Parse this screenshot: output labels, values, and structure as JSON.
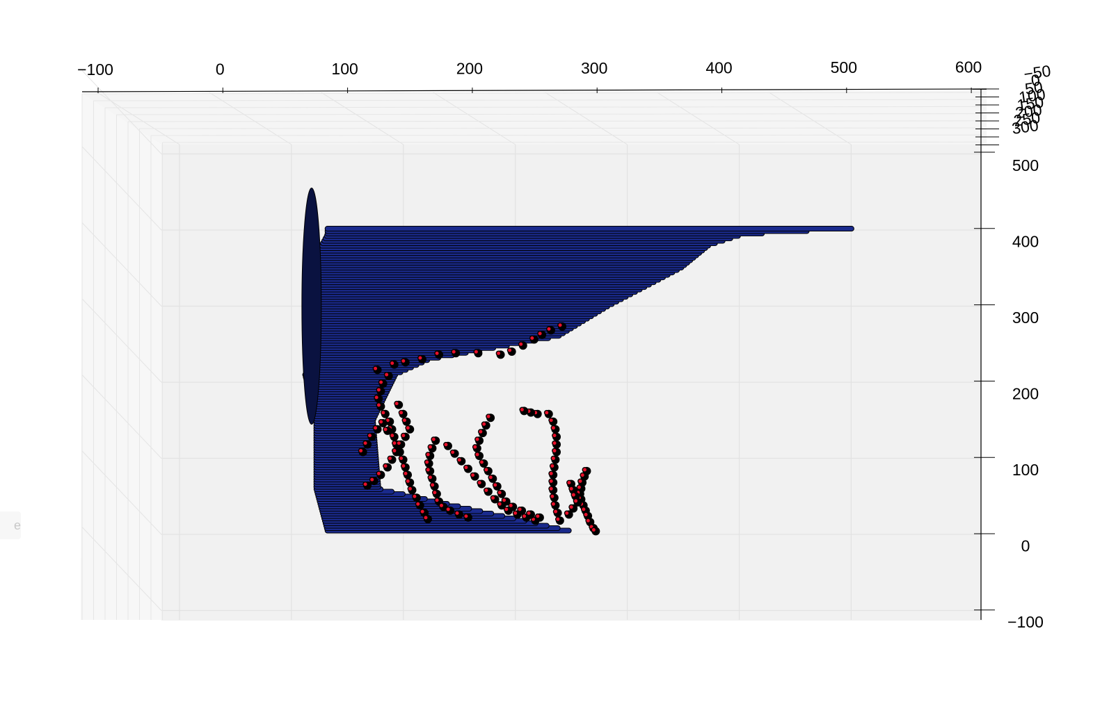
{
  "side_tab_text": "e",
  "chart_data": {
    "type": "scatter",
    "title": "",
    "view": "3d",
    "xlabel": "",
    "ylabel": "",
    "zlabel": "",
    "x_ticks": [
      "−100",
      "0",
      "100",
      "200",
      "300",
      "400",
      "500",
      "600"
    ],
    "y_ticks": [
      "500",
      "400",
      "300",
      "200",
      "100",
      "0",
      "−100"
    ],
    "z_ticks": [
      "−50",
      "0",
      "50",
      "100",
      "150",
      "200",
      "250",
      "300"
    ],
    "xlim": [
      -100,
      600
    ],
    "ylim": [
      -100,
      500
    ],
    "grid": true,
    "series": [
      {
        "color": "#1a2a8c",
        "note_profile": [
          {
            "y": 402,
            "x_min": 30,
            "x_max": 505
          },
          {
            "y": 394,
            "x_min": 30,
            "x_max": 405
          },
          {
            "y": 380,
            "x_min": 25,
            "x_max": 375
          },
          {
            "y": 350,
            "x_min": 20,
            "x_max": 350
          },
          {
            "y": 300,
            "x_min": 20,
            "x_max": 285
          },
          {
            "y": 260,
            "x_min": 20,
            "x_max": 240
          },
          {
            "y": 230,
            "x_min": 15,
            "x_max": 125
          },
          {
            "y": 210,
            "x_min": 10,
            "x_max": 95
          },
          {
            "y": 150,
            "x_min": 20,
            "x_max": 75
          },
          {
            "y": 60,
            "x_min": 20,
            "x_max": 80
          },
          {
            "y": 5,
            "x_min": 30,
            "x_max": 250
          }
        ]
      },
      {
        "color": "#e8102a",
        "points": [
          [
            75,
            218
          ],
          [
            90,
            225
          ],
          [
            100,
            228
          ],
          [
            115,
            232
          ],
          [
            130,
            238
          ],
          [
            145,
            240
          ],
          [
            165,
            240
          ],
          [
            185,
            238
          ],
          [
            195,
            242
          ],
          [
            205,
            250
          ],
          [
            215,
            258
          ],
          [
            222,
            264
          ],
          [
            230,
            270
          ],
          [
            240,
            275
          ],
          [
            85,
            210
          ],
          [
            80,
            200
          ],
          [
            78,
            190
          ],
          [
            76,
            180
          ],
          [
            78,
            170
          ],
          [
            82,
            160
          ],
          [
            86,
            150
          ],
          [
            88,
            140
          ],
          [
            90,
            130
          ],
          [
            92,
            120
          ],
          [
            95,
            110
          ],
          [
            98,
            100
          ],
          [
            100,
            90
          ],
          [
            102,
            80
          ],
          [
            104,
            70
          ],
          [
            106,
            60
          ],
          [
            110,
            50
          ],
          [
            113,
            40
          ],
          [
            117,
            30
          ],
          [
            120,
            22
          ],
          [
            94,
            172
          ],
          [
            98,
            160
          ],
          [
            101,
            150
          ],
          [
            104,
            140
          ],
          [
            100,
            130
          ],
          [
            96,
            120
          ],
          [
            92,
            110
          ],
          [
            88,
            100
          ],
          [
            84,
            90
          ],
          [
            78,
            80
          ],
          [
            72,
            72
          ],
          [
            66,
            66
          ],
          [
            62,
            110
          ],
          [
            66,
            120
          ],
          [
            70,
            130
          ],
          [
            75,
            140
          ],
          [
            80,
            148
          ],
          [
            84,
            138
          ],
          [
            127,
            125
          ],
          [
            124,
            115
          ],
          [
            122,
            105
          ],
          [
            121,
            95
          ],
          [
            122,
            85
          ],
          [
            124,
            75
          ],
          [
            126,
            65
          ],
          [
            128,
            55
          ],
          [
            130,
            45
          ],
          [
            134,
            38
          ],
          [
            140,
            33
          ],
          [
            148,
            28
          ],
          [
            156,
            24
          ],
          [
            138,
            118
          ],
          [
            144,
            108
          ],
          [
            150,
            98
          ],
          [
            156,
            88
          ],
          [
            162,
            78
          ],
          [
            168,
            68
          ],
          [
            174,
            58
          ],
          [
            180,
            48
          ],
          [
            186,
            40
          ],
          [
            192,
            33
          ],
          [
            200,
            28
          ],
          [
            208,
            24
          ],
          [
            216,
            20
          ],
          [
            176,
            155
          ],
          [
            172,
            145
          ],
          [
            169,
            135
          ],
          [
            166,
            125
          ],
          [
            164,
            115
          ],
          [
            166,
            105
          ],
          [
            170,
            95
          ],
          [
            174,
            85
          ],
          [
            178,
            75
          ],
          [
            182,
            65
          ],
          [
            186,
            55
          ],
          [
            190,
            45
          ],
          [
            196,
            38
          ],
          [
            204,
            33
          ],
          [
            212,
            28
          ],
          [
            220,
            24
          ],
          [
            228,
            160
          ],
          [
            232,
            150
          ],
          [
            234,
            140
          ],
          [
            235,
            130
          ],
          [
            235,
            120
          ],
          [
            235,
            110
          ],
          [
            234,
            100
          ],
          [
            233,
            90
          ],
          [
            232,
            80
          ],
          [
            232,
            70
          ],
          [
            232,
            60
          ],
          [
            233,
            50
          ],
          [
            234,
            40
          ],
          [
            236,
            30
          ],
          [
            238,
            20
          ],
          [
            218,
            160
          ],
          [
            212,
            162
          ],
          [
            206,
            164
          ],
          [
            262,
            85
          ],
          [
            260,
            78
          ],
          [
            258,
            70
          ],
          [
            257,
            62
          ],
          [
            256,
            55
          ],
          [
            257,
            48
          ],
          [
            259,
            40
          ],
          [
            261,
            33
          ],
          [
            263,
            26
          ],
          [
            265,
            18
          ],
          [
            268,
            10
          ],
          [
            270,
            6
          ],
          [
            248,
            68
          ],
          [
            250,
            60
          ],
          [
            252,
            52
          ],
          [
            254,
            44
          ],
          [
            250,
            36
          ],
          [
            246,
            28
          ]
        ]
      }
    ]
  }
}
